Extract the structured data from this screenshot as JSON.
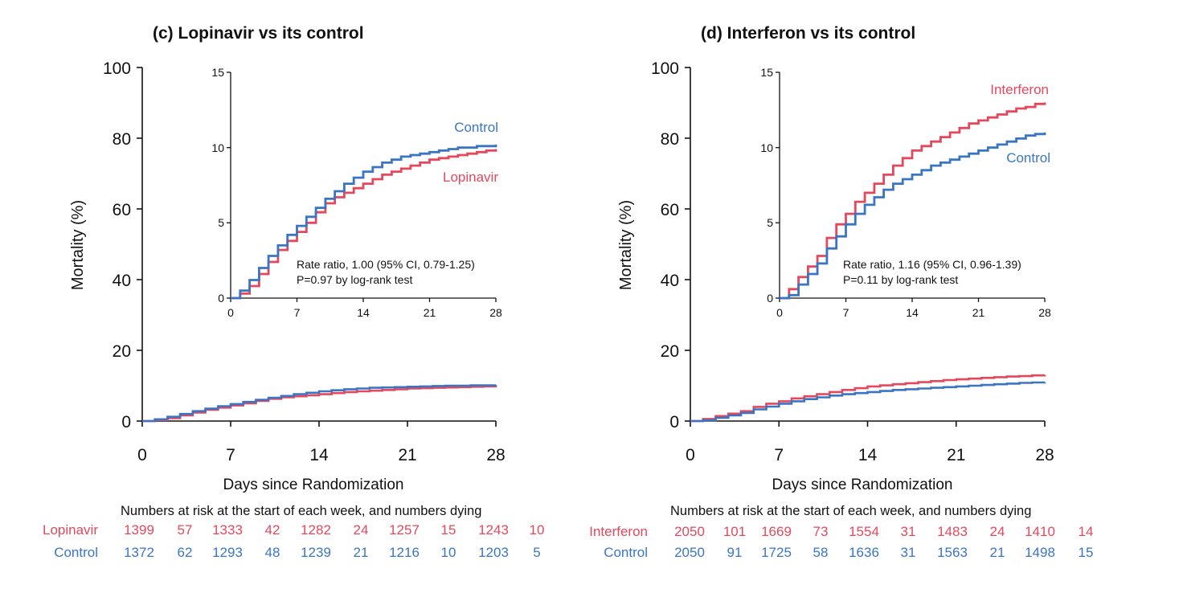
{
  "colors": {
    "red": "#e5485d",
    "blue": "#3a75c4",
    "axis": "#111111"
  },
  "chart_data": [
    {
      "type": "line",
      "title": "(c) Lopinavir vs its control",
      "xlabel": "Days since Randomization",
      "ylabel": "Mortality (%)",
      "xlim": [
        0,
        28
      ],
      "ylim": [
        0,
        100
      ],
      "xticks": [
        "0",
        "7",
        "14",
        "21",
        "28"
      ],
      "yticks": [
        "0",
        "20",
        "40",
        "60",
        "80",
        "100"
      ],
      "grid": false,
      "step": true,
      "series": [
        {
          "name": "Lopinavir",
          "color": "#e5485d",
          "x": [
            0,
            1,
            2,
            3,
            4,
            5,
            6,
            7,
            8,
            9,
            10,
            11,
            12,
            13,
            14,
            15,
            16,
            17,
            18,
            19,
            20,
            21,
            22,
            23,
            24,
            25,
            26,
            27,
            28
          ],
          "y": [
            0,
            0.3,
            0.8,
            1.6,
            2.4,
            3.2,
            3.8,
            4.4,
            5.0,
            5.7,
            6.3,
            6.7,
            7.0,
            7.3,
            7.6,
            7.9,
            8.2,
            8.4,
            8.6,
            8.8,
            9.0,
            9.2,
            9.3,
            9.4,
            9.5,
            9.6,
            9.7,
            9.8,
            9.9
          ]
        },
        {
          "name": "Control",
          "color": "#3a75c4",
          "x": [
            0,
            1,
            2,
            3,
            4,
            5,
            6,
            7,
            8,
            9,
            10,
            11,
            12,
            13,
            14,
            15,
            16,
            17,
            18,
            19,
            20,
            21,
            22,
            23,
            24,
            25,
            26,
            27,
            28
          ],
          "y": [
            0,
            0.5,
            1.2,
            2.0,
            2.8,
            3.5,
            4.2,
            4.8,
            5.4,
            6.0,
            6.6,
            7.1,
            7.6,
            8.0,
            8.4,
            8.7,
            9.0,
            9.2,
            9.4,
            9.5,
            9.6,
            9.7,
            9.8,
            9.9,
            10.0,
            10.0,
            10.1,
            10.1,
            10.2
          ]
        }
      ],
      "inset": {
        "xlim": [
          0,
          28
        ],
        "ylim": [
          0,
          15
        ],
        "xticks": [
          "0",
          "7",
          "14",
          "21",
          "28"
        ],
        "yticks": [
          "0",
          "5",
          "10",
          "15"
        ],
        "labels": {
          "control": "Control",
          "treatment": "Lopinavir"
        },
        "annotation": [
          "Rate ratio, 1.00 (95% CI, 0.79-1.25)",
          "P=0.97 by log-rank test"
        ]
      },
      "risk_table": {
        "caption": "Numbers at risk at the start of each week, and numbers dying",
        "rows": [
          {
            "label": "Lopinavir",
            "values": [
              "1399",
              "57",
              "1333",
              "42",
              "1282",
              "24",
              "1257",
              "15",
              "1243",
              "10"
            ]
          },
          {
            "label": "Control",
            "values": [
              "1372",
              "62",
              "1293",
              "48",
              "1239",
              "21",
              "1216",
              "10",
              "1203",
              "5"
            ]
          }
        ]
      }
    },
    {
      "type": "line",
      "title": "(d) Interferon vs its control",
      "xlabel": "Days since Randomization",
      "ylabel": "Mortality (%)",
      "xlim": [
        0,
        28
      ],
      "ylim": [
        0,
        100
      ],
      "xticks": [
        "0",
        "7",
        "14",
        "21",
        "28"
      ],
      "yticks": [
        "0",
        "20",
        "40",
        "60",
        "80",
        "100"
      ],
      "grid": false,
      "step": true,
      "series": [
        {
          "name": "Interferon",
          "color": "#e5485d",
          "x": [
            0,
            1,
            2,
            3,
            4,
            5,
            6,
            7,
            8,
            9,
            10,
            11,
            12,
            13,
            14,
            15,
            16,
            17,
            18,
            19,
            20,
            21,
            22,
            23,
            24,
            25,
            26,
            27,
            28
          ],
          "y": [
            0,
            0.6,
            1.4,
            2.1,
            2.8,
            4.0,
            4.9,
            5.6,
            6.4,
            7.0,
            7.6,
            8.2,
            8.8,
            9.3,
            9.8,
            10.1,
            10.4,
            10.7,
            11.0,
            11.3,
            11.6,
            11.8,
            12.0,
            12.2,
            12.4,
            12.6,
            12.7,
            12.9,
            13.0
          ]
        },
        {
          "name": "Control",
          "color": "#3a75c4",
          "x": [
            0,
            1,
            2,
            3,
            4,
            5,
            6,
            7,
            8,
            9,
            10,
            11,
            12,
            13,
            14,
            15,
            16,
            17,
            18,
            19,
            20,
            21,
            22,
            23,
            24,
            25,
            26,
            27,
            28
          ],
          "y": [
            0,
            0.2,
            0.9,
            1.6,
            2.3,
            3.3,
            4.1,
            4.9,
            5.6,
            6.2,
            6.7,
            7.2,
            7.6,
            7.9,
            8.2,
            8.5,
            8.8,
            9.0,
            9.2,
            9.4,
            9.6,
            9.8,
            10.0,
            10.2,
            10.4,
            10.6,
            10.8,
            10.9,
            11.0
          ]
        }
      ],
      "inset": {
        "xlim": [
          0,
          28
        ],
        "ylim": [
          0,
          15
        ],
        "xticks": [
          "0",
          "7",
          "14",
          "21",
          "28"
        ],
        "yticks": [
          "0",
          "5",
          "10",
          "15"
        ],
        "labels": {
          "treatment": "Interferon",
          "control": "Control"
        },
        "annotation": [
          "Rate ratio, 1.16 (95% CI, 0.96-1.39)",
          "P=0.11 by log-rank test"
        ]
      },
      "risk_table": {
        "caption": "Numbers at risk at the start of each week, and numbers dying",
        "rows": [
          {
            "label": "Interferon",
            "values": [
              "2050",
              "101",
              "1669",
              "73",
              "1554",
              "31",
              "1483",
              "24",
              "1410",
              "14"
            ]
          },
          {
            "label": "Control",
            "values": [
              "2050",
              "91",
              "1725",
              "58",
              "1636",
              "31",
              "1563",
              "21",
              "1498",
              "15"
            ]
          }
        ]
      }
    }
  ]
}
